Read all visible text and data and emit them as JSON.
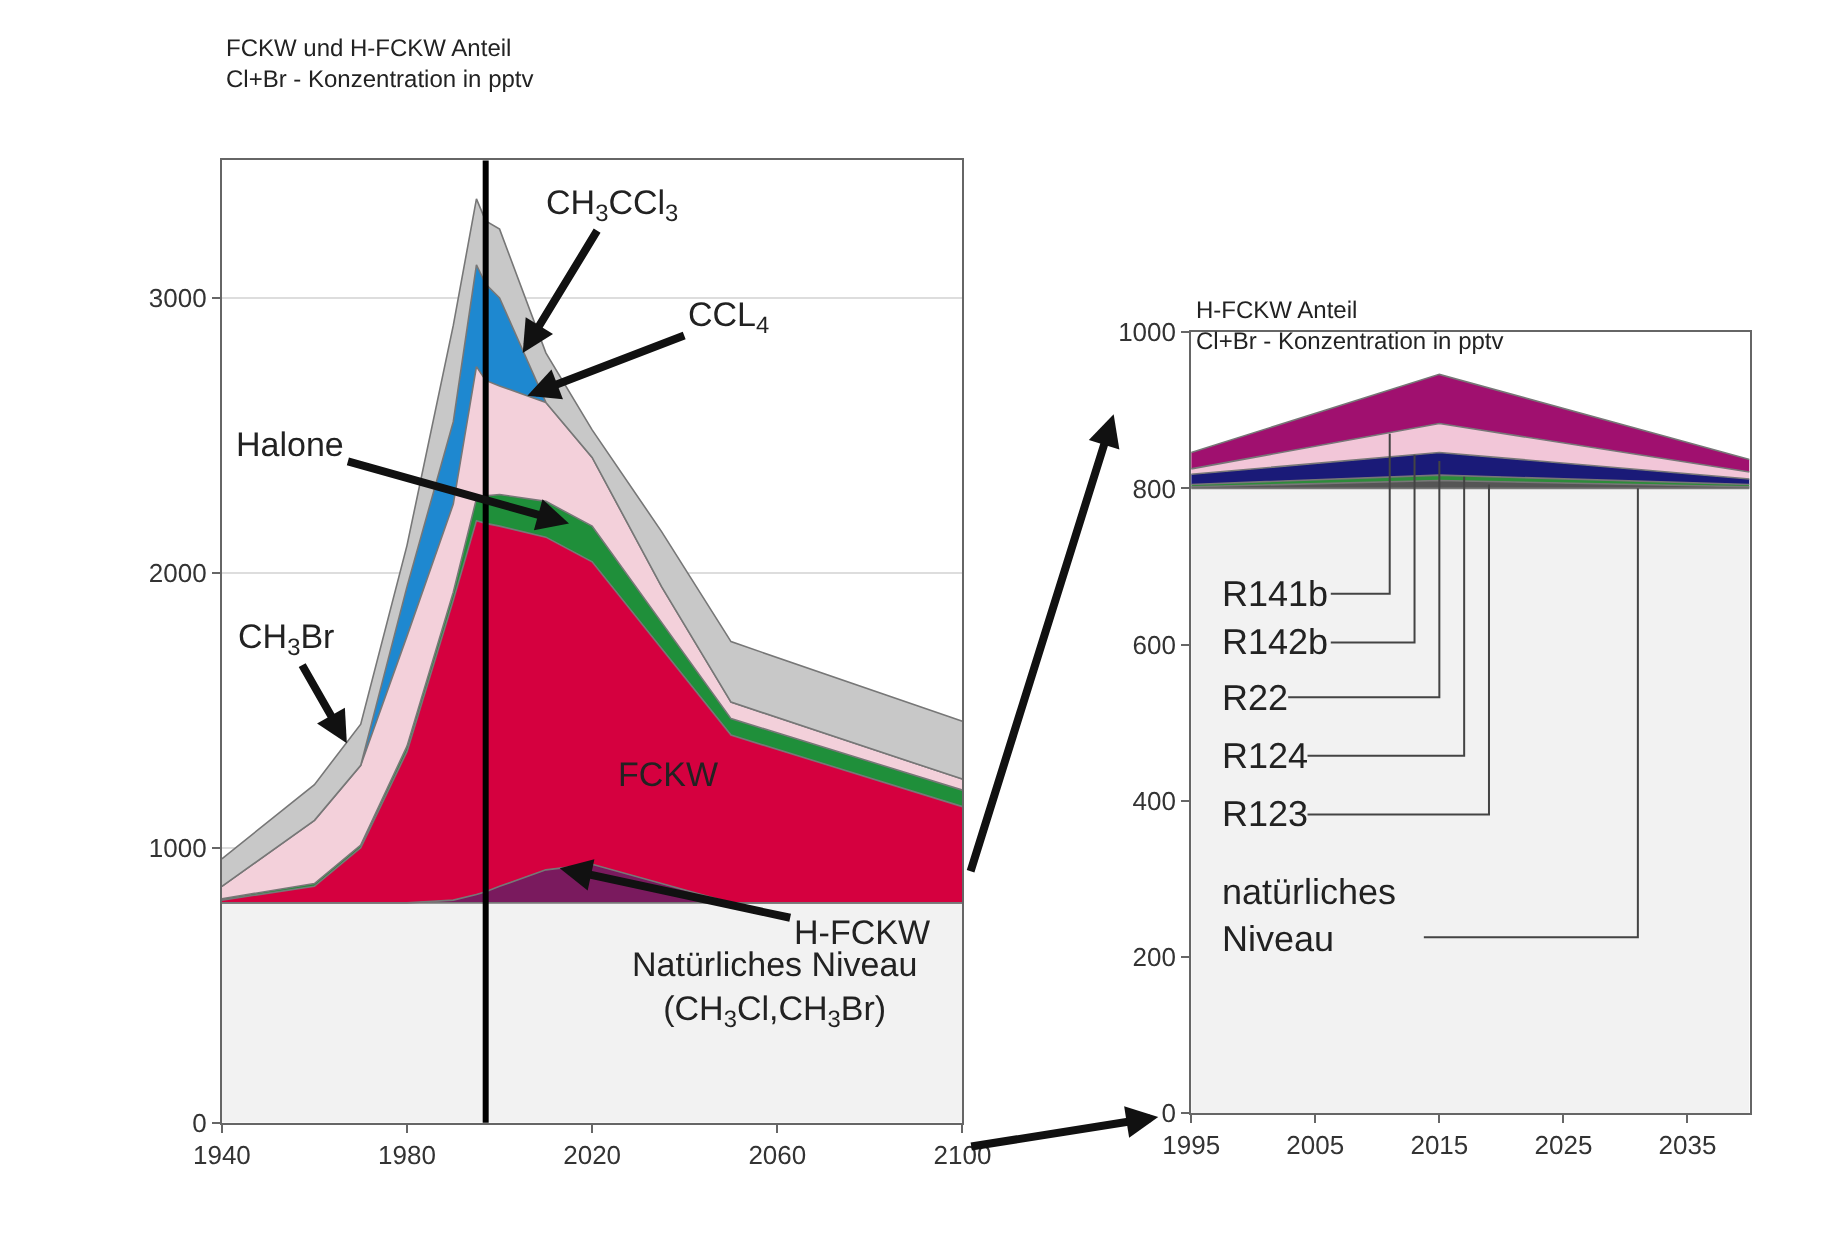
{
  "chart_data": [
    {
      "type": "area",
      "stacked": true,
      "title": "FCKW und H-FCKW Anteil\nCl+Br - Konzentration in pptv",
      "x": [
        1940,
        1960,
        1970,
        1980,
        1990,
        1995,
        1997,
        2000,
        2010,
        2020,
        2035,
        2050,
        2100
      ],
      "series": [
        {
          "color": "#f2f2f2",
          "values": [
            800,
            800,
            800,
            800,
            800,
            800,
            800,
            800,
            800,
            800,
            800,
            800,
            800
          ]
        },
        {
          "color": "#7a1a5e",
          "values": [
            0,
            0,
            0,
            0,
            10,
            30,
            40,
            60,
            120,
            140,
            70,
            0,
            0
          ]
        },
        {
          "color": "#d5003f",
          "values": [
            10,
            60,
            200,
            550,
            1090,
            1360,
            1340,
            1310,
            1210,
            1100,
            855,
            610,
            350
          ]
        },
        {
          "color": "#1f8f3a",
          "values": [
            5,
            10,
            10,
            20,
            30,
            80,
            100,
            115,
            130,
            130,
            95,
            60,
            60
          ]
        },
        {
          "color": "#f3d0da",
          "values": [
            45,
            230,
            290,
            400,
            320,
            480,
            420,
            395,
            360,
            250,
            130,
            60,
            40
          ]
        },
        {
          "color": "#1e88d0",
          "values": [
            0,
            0,
            0,
            180,
            300,
            370,
            350,
            320,
            0,
            0,
            0,
            0,
            0
          ]
        },
        {
          "color": "#c8c8c8",
          "values": [
            100,
            130,
            150,
            150,
            350,
            240,
            230,
            250,
            180,
            100,
            200,
            220,
            210
          ]
        }
      ],
      "xlim": [
        1940,
        2100
      ],
      "ylim": [
        0,
        3500
      ],
      "xticks": [
        1940,
        1980,
        2020,
        2060,
        2100
      ],
      "yticks": [
        0,
        1000,
        2000,
        3000
      ],
      "grid": "y",
      "ref_lines": [
        {
          "axis": "x",
          "value": 1997,
          "color": "#000000"
        }
      ],
      "annotations": [
        {
          "text": "CH$_{3}$CCl$_{3}$",
          "x": 2005,
          "y": 2800
        },
        {
          "text": "CCL$_{4}$",
          "x": 2006,
          "y": 2644
        },
        {
          "text": "Halone",
          "x": 2015,
          "y": 2180
        },
        {
          "text": "CH$_{3}$Br",
          "x": 1967,
          "y": 1380
        },
        "FCKW",
        {
          "text": "H-FCKW",
          "x": 2013,
          "y": 926
        },
        "Natürliches Niveau\n(CH$_{3}$Cl,CH$_{3}$Br)"
      ]
    },
    {
      "type": "area",
      "stacked": true,
      "title": "H-FCKW Anteil\nCl+Br - Konzentration in pptv",
      "x": [
        1995,
        2015,
        2040
      ],
      "series": [
        {
          "color": "#f2f2f2",
          "values": [
            800,
            800,
            800
          ]
        },
        {
          "color": "#555555",
          "values": [
            2,
            10,
            2
          ]
        },
        {
          "color": "#2e8b3a",
          "values": [
            3,
            7,
            3
          ]
        },
        {
          "color": "#1a1a78",
          "values": [
            13,
            29,
            7
          ]
        },
        {
          "color": "#f2c6d8",
          "values": [
            7,
            37,
            9
          ]
        },
        {
          "color": "#a0106f",
          "values": [
            21,
            63,
            16
          ]
        }
      ],
      "xlim": [
        1995,
        2040
      ],
      "ylim": [
        0,
        1000
      ],
      "xticks": [
        1995,
        2005,
        2015,
        2025,
        2035
      ],
      "yticks": [
        0,
        200,
        400,
        600,
        800,
        1000
      ],
      "annotations": [
        {
          "text": "R141b",
          "x": 2011,
          "y": 870
        },
        {
          "text": "R142b",
          "x": 2013,
          "y": 843
        },
        {
          "text": "R22",
          "x": 2015,
          "y": 835
        },
        {
          "text": "R124",
          "x": 2017,
          "y": 815
        },
        {
          "text": "R123",
          "x": 2019,
          "y": 805
        },
        {
          "text": "natürliches\nNiveau",
          "x": 2031,
          "y": 800
        }
      ]
    }
  ]
}
